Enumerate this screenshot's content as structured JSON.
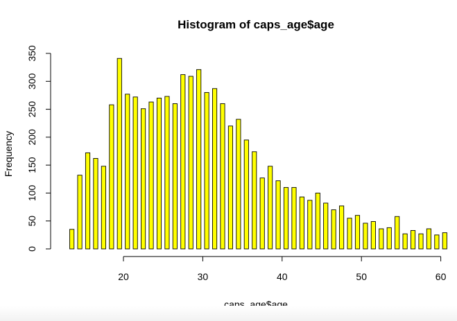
{
  "chart_data": {
    "type": "bar",
    "title": "Histogram of caps_age$age",
    "xlabel": "caps_age$age",
    "ylabel": "Frequency",
    "bar_color": "#ffff00",
    "bar_border_color": "#000000",
    "xlim": [
      13,
      60
    ],
    "ylim": [
      0,
      350
    ],
    "x_ticks": [
      20,
      30,
      40,
      50,
      60
    ],
    "y_ticks": [
      0,
      50,
      100,
      150,
      200,
      250,
      300,
      350
    ],
    "bin_start": 13,
    "bin_width": 1,
    "values": [
      35,
      132,
      172,
      162,
      148,
      258,
      341,
      277,
      272,
      251,
      263,
      270,
      273,
      260,
      312,
      309,
      321,
      280,
      287,
      260,
      220,
      232,
      195,
      174,
      127,
      148,
      122,
      110,
      110,
      93,
      87,
      100,
      82,
      70,
      77,
      55,
      60,
      46,
      49,
      36,
      38,
      58,
      27,
      33,
      27,
      36,
      25,
      29
    ]
  }
}
